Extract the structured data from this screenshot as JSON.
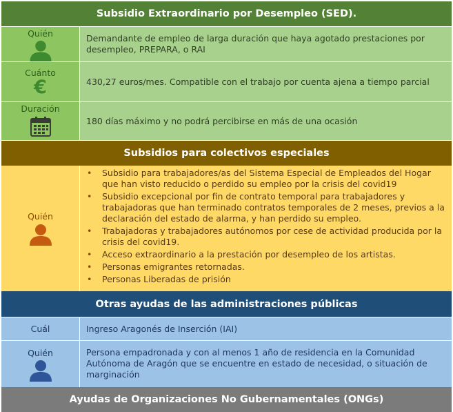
{
  "sed": {
    "title": "Subsidio Extraordinario por Desempleo (SED).",
    "rows": [
      {
        "label": "Quién",
        "icon": "person-icon",
        "text": "Demandante de empleo de larga duración que haya agotado prestaciones por desempleo, PREPARA, o RAI"
      },
      {
        "label": "Cuánto",
        "icon": "euro-icon",
        "text": "430,27 euros/mes. Compatible con el trabajo por cuenta ajena a tiempo parcial"
      },
      {
        "label": "Duración",
        "icon": "calendar-icon",
        "text": "180 días máximo y no podrá percibirse en más de una ocasión"
      }
    ]
  },
  "especiales": {
    "title": "Subsidios para colectivos especiales",
    "label": "Quién",
    "icon": "person-icon",
    "items": [
      "Subsidio para trabajadores/as del Sistema Especial de Empleados del Hogar que han visto reducido o perdido su empleo por la crisis del covid19",
      "Subsidio excepcional por fin de contrato temporal para trabajadores y trabajadoras que han terminado contratos temporales de 2 meses, previos a la declaración del estado de alarma, y han perdido su empleo.",
      "Trabajadoras y trabajadores autónomos por cese de actividad producida por la crisis del covid19.",
      "Acceso extraordinario a la prestación por desempleo de los artistas.",
      "Personas emigrantes retornadas.",
      "Personas Liberadas de prisión"
    ]
  },
  "otras": {
    "title": "Otras ayudas de las administraciones públicas",
    "rows": [
      {
        "label": "Cuál",
        "text": "Ingreso Aragonés de Inserción (IAI)"
      },
      {
        "label": "Quién",
        "icon": "person-icon",
        "text": "Persona empadronada y con al menos 1 año de residencia en la Comunidad Autónoma de Aragón que se encuentre en estado de necesidad, o situación de marginación"
      }
    ]
  },
  "ongs": {
    "title": "Ayudas de Organizaciones No Gubernamentales (ONGs)"
  },
  "colors": {
    "green_band": "#538135",
    "green_label": "#8dc561",
    "green_value": "#a9d18e",
    "green_icon": "#3d8b2e",
    "orange_band": "#7f5f00",
    "orange_cell": "#ffd966",
    "orange_icon": "#c55a11",
    "blue_band": "#1f4e79",
    "blue_cell": "#9cc2e5",
    "blue_icon": "#2e5597",
    "grey_band": "#7b7b7b"
  }
}
